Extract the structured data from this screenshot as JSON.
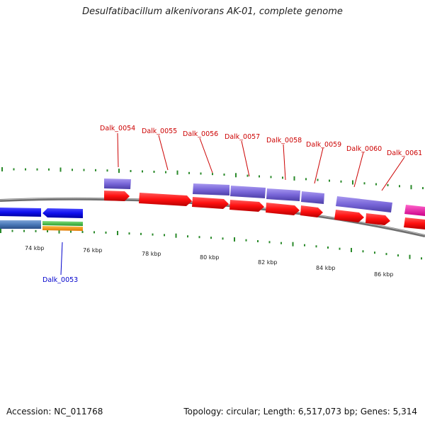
{
  "header": {
    "title": "Desulfatibacillum alkenivorans AK-01, complete genome"
  },
  "footer": {
    "accession": "Accession: NC_011768",
    "summary": "Topology: circular; Length: 6,517,073 bp; Genes: 5,314"
  },
  "colors": {
    "backbone": "#888888",
    "tick": "#2a8a2a",
    "forward_cds": "#ff1a1a",
    "protein_feature": "#7b68d8",
    "reverse_cds": "#1a1aee",
    "steelblue_feature": "#4a78b8",
    "green_feature": "#44bb44",
    "orange_feature": "#ff9900",
    "magenta_feature": "#ee22aa",
    "label_forward": "#cc0000",
    "label_reverse": "#0000cc"
  },
  "scale": {
    "labels": [
      "74 kbp",
      "76 kbp",
      "78 kbp",
      "80 kbp",
      "82 kbp",
      "84 kbp",
      "86 kbp"
    ]
  },
  "genes": [
    {
      "name": "Dalk_0053",
      "strand": "reverse"
    },
    {
      "name": "Dalk_0054",
      "strand": "forward"
    },
    {
      "name": "Dalk_0055",
      "strand": "forward"
    },
    {
      "name": "Dalk_0056",
      "strand": "forward"
    },
    {
      "name": "Dalk_0057",
      "strand": "forward"
    },
    {
      "name": "Dalk_0058",
      "strand": "forward"
    },
    {
      "name": "Dalk_0059",
      "strand": "forward"
    },
    {
      "name": "Dalk_0060",
      "strand": "forward"
    },
    {
      "name": "Dalk_0061",
      "strand": "forward"
    }
  ]
}
